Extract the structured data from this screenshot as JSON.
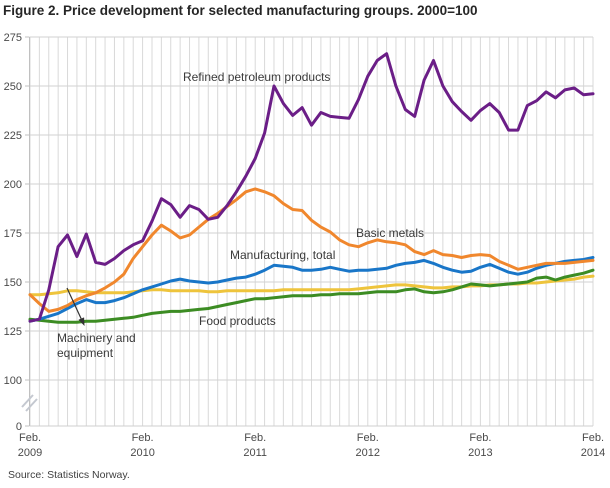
{
  "title": "Figure 2. Price development for selected manufacturing groups. 2000=100",
  "source": "Source: Statistics Norway.",
  "annotations": {
    "refined": "Refined petroleum products",
    "basic": "Basic metals",
    "manufacturing": "Manufacturing, total",
    "food": "Food products",
    "machinery_line1": "Machinery and",
    "machinery_line2": "equipment"
  },
  "colors": {
    "refined": "#6b1e87",
    "basic": "#f0872d",
    "manufacturing": "#1976c8",
    "food": "#3c8c23",
    "machinery": "#eec43c",
    "gridline": "#d9d9d9",
    "axis": "#c0c0c0",
    "tick_text": "#4a4a4a",
    "annotation_arrow": "#333333"
  },
  "chart_data": {
    "type": "line",
    "title": "Figure 2. Price development for selected manufacturing groups. 2000=100",
    "x_unit": "month",
    "x_range": [
      "Feb 2009",
      "Feb 2014"
    ],
    "x_tick_labels": [
      [
        "Feb.",
        "2009"
      ],
      [
        "Feb.",
        "2010"
      ],
      [
        "Feb.",
        "2011"
      ],
      [
        "Feb.",
        "2012"
      ],
      [
        "Feb.",
        "2013"
      ],
      [
        "Feb.",
        "2014"
      ]
    ],
    "y_ticks": [
      275,
      250,
      225,
      200,
      175,
      150,
      125,
      100
    ],
    "y_zero_tick": 0,
    "y_axis_break": true,
    "ylim_main": [
      100,
      275
    ],
    "grid": "monthly vertical + 25-step horizontal",
    "series": [
      {
        "name": "Machinery and equipment",
        "key": "machinery",
        "values": [
          143.5,
          143.5,
          144,
          144.5,
          145.5,
          145.5,
          145,
          144.5,
          144.5,
          144.5,
          144.5,
          145,
          145.5,
          146,
          146,
          145.5,
          145.5,
          145.5,
          145.5,
          145,
          145,
          145.5,
          145.5,
          145.5,
          145.5,
          145.5,
          145.5,
          146,
          146,
          146,
          146,
          146,
          146,
          146,
          146,
          146.5,
          147,
          147.5,
          148,
          148.5,
          148.5,
          148,
          147.5,
          147,
          147,
          147.5,
          147.5,
          148,
          148,
          148.5,
          148.5,
          149,
          149,
          149.5,
          149.5,
          150,
          150.5,
          151,
          151.5,
          152.5,
          153
        ]
      },
      {
        "name": "Food products",
        "key": "food",
        "values": [
          131,
          130.5,
          130,
          129.5,
          129.5,
          129.5,
          130,
          130,
          130.5,
          131,
          131.5,
          132,
          133,
          134,
          134.5,
          135,
          135,
          135.5,
          136,
          136.5,
          137.5,
          138.5,
          139.5,
          140.5,
          141.5,
          141.5,
          142,
          142.5,
          143,
          143,
          143,
          143.5,
          143.5,
          144,
          144,
          144,
          144.5,
          145,
          145,
          145,
          146,
          146.5,
          145,
          144.5,
          145,
          146,
          147.5,
          149,
          148.5,
          148,
          148.5,
          149,
          149.5,
          150,
          152,
          152.5,
          151,
          152.5,
          153.5,
          154.5,
          156
        ]
      },
      {
        "name": "Manufacturing, total",
        "key": "manufacturing",
        "values": [
          130,
          131,
          132.5,
          134,
          136.5,
          139,
          141,
          139.5,
          139.5,
          140.5,
          142,
          144,
          146,
          147.5,
          149,
          150.5,
          151.5,
          150.5,
          150,
          149.5,
          150,
          151,
          152,
          152.5,
          154,
          156,
          158.5,
          158,
          157.5,
          156,
          156,
          156.5,
          157.5,
          156.5,
          155.5,
          156,
          156,
          156.5,
          157,
          158.5,
          159.5,
          160,
          161,
          159.5,
          157.5,
          156,
          155,
          155.5,
          157.5,
          159,
          157,
          155,
          154,
          155,
          157,
          158.5,
          159.5,
          160.5,
          161,
          161.5,
          162.5
        ]
      },
      {
        "name": "Basic metals",
        "key": "basic",
        "values": [
          143.5,
          139,
          135,
          136,
          138,
          141,
          143,
          144.5,
          147,
          150,
          154,
          162,
          168,
          174,
          179,
          176,
          172.5,
          174,
          178,
          182,
          185,
          188.5,
          192,
          196,
          197.5,
          196,
          194,
          190,
          187,
          186.5,
          181.5,
          178,
          175.5,
          171.5,
          169,
          168,
          170,
          171.5,
          170.5,
          170,
          169,
          165.5,
          164,
          166,
          164,
          163.5,
          162.5,
          163.5,
          164,
          163.5,
          160.5,
          158.5,
          156.5,
          157.5,
          158.5,
          159.5,
          159.5,
          159.5,
          160,
          160.5,
          161
        ]
      },
      {
        "name": "Refined petroleum products",
        "key": "refined",
        "values": [
          130,
          131,
          146,
          168,
          174,
          163,
          174.5,
          160,
          159,
          162,
          166,
          169,
          171,
          181,
          192.5,
          189.5,
          183,
          189,
          187,
          182,
          183,
          189,
          196,
          204,
          213,
          226,
          250,
          241,
          235,
          239,
          230,
          236.5,
          234.5,
          234,
          233.5,
          243,
          255,
          263,
          266.5,
          250,
          238,
          234.5,
          253,
          263,
          250,
          242,
          237,
          232.5,
          237.5,
          241,
          236.5,
          227.5,
          227.5,
          240,
          242.5,
          247,
          244,
          248,
          249,
          245.5,
          246
        ]
      }
    ],
    "legend_position": "inline-labels"
  }
}
